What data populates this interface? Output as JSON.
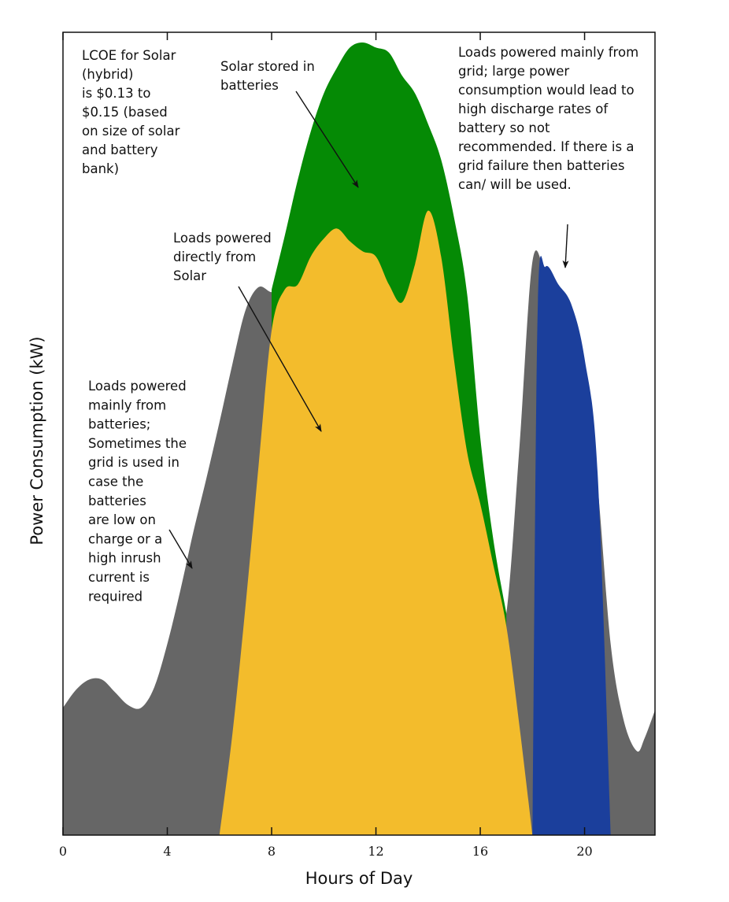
{
  "chart_data": {
    "type": "area",
    "xlabel": "Hours of Day",
    "ylabel": "Power Consumption (kW)",
    "xlim": [
      0,
      22.7
    ],
    "ylim": [
      0,
      31.5
    ],
    "x_ticks": [
      0,
      4,
      8,
      12,
      16,
      20
    ],
    "y_ticks_shown": false,
    "grid": false,
    "colors": {
      "load": "#666666",
      "solar_stored": "#058a05",
      "solar_direct": "#f3bc2c",
      "grid": "#1b3f9c"
    },
    "series": [
      {
        "key": "load",
        "x": [
          0,
          0.5,
          1,
          1.5,
          2,
          2.5,
          3,
          3.5,
          4,
          4.5,
          5,
          5.5,
          6,
          6.5,
          7,
          7.5,
          8,
          8.5,
          9,
          9.5,
          10,
          10.5,
          11,
          11.5,
          12,
          12.5,
          13,
          13.5,
          14,
          14.5,
          15,
          15.5,
          16,
          16.5,
          17,
          17.5,
          18,
          18.5,
          19,
          19.5,
          20,
          20.5,
          21,
          21.5,
          22,
          22.3,
          22.7
        ],
        "y": [
          5,
          5.7,
          6.1,
          6.1,
          5.6,
          5.1,
          5,
          5.8,
          7.5,
          9.6,
          11.9,
          14,
          16.2,
          18.5,
          20.6,
          21.5,
          21.3,
          21.4,
          22.3,
          23.3,
          24.5,
          24.8,
          24.1,
          23.5,
          22.7,
          22.9,
          23.4,
          24.6,
          24.5,
          22.8,
          18.7,
          10.4,
          8.7,
          7.6,
          8.7,
          15.2,
          22.5,
          22,
          20.9,
          20.3,
          18.2,
          13.7,
          7.5,
          4.5,
          3.3,
          3.8,
          4.9
        ]
      },
      {
        "key": "solar_stored",
        "x": [
          8,
          8.5,
          9,
          9.5,
          10,
          10.5,
          11,
          11.5,
          12,
          12.5,
          13,
          13.5,
          14,
          14.5,
          15,
          15.5,
          16,
          16.5,
          17
        ],
        "y": [
          21.4,
          23.5,
          25.7,
          27.6,
          29.1,
          30.1,
          30.9,
          31.1,
          30.9,
          30.7,
          29.8,
          29.1,
          27.9,
          26.5,
          24.2,
          21.2,
          15.6,
          11.6,
          8.7
        ]
      },
      {
        "key": "solar_direct",
        "x": [
          6,
          6.5,
          7,
          7.5,
          8,
          8.5,
          9,
          9.5,
          10,
          10.5,
          11,
          11.5,
          12,
          12.5,
          13,
          13.5,
          14,
          14.5,
          15,
          15.5,
          16,
          16.5,
          17,
          17.5,
          18
        ],
        "y": [
          0,
          4,
          9,
          14.5,
          19.8,
          21.4,
          21.6,
          22.7,
          23.4,
          23.8,
          23.3,
          22.9,
          22.7,
          21.6,
          20.9,
          22.4,
          24.5,
          22.7,
          18.6,
          15,
          13,
          10.6,
          8.2,
          4.3,
          0
        ]
      },
      {
        "key": "grid",
        "x": [
          18,
          18.2,
          18.5,
          19,
          19.5,
          20,
          20.5,
          21
        ],
        "y": [
          0,
          20.5,
          22.3,
          21.6,
          20.8,
          18.7,
          14.2,
          0
        ]
      }
    ]
  },
  "annotations": {
    "lcoe": [
      "LCOE for Solar",
      "(hybrid)",
      "is $0.13 to",
      "$0.15 (based",
      "on size of solar",
      "and battery",
      "bank)"
    ],
    "solar_stored": [
      "Solar stored in",
      "batteries"
    ],
    "grid_loads": [
      "Loads powered mainly from",
      "grid; large power",
      "consumption would lead to",
      "high discharge rates of",
      "battery so not",
      "recommended. If there is a",
      "grid failure then batteries",
      "can/ will be used."
    ],
    "direct_solar": [
      "Loads powered",
      "directly from",
      "Solar"
    ],
    "battery_loads": [
      "Loads powered",
      "mainly from",
      "batteries;",
      "Sometimes the",
      "grid is used in",
      "case the",
      "batteries",
      "are low on",
      "charge or a",
      "high inrush",
      "current is",
      "required"
    ]
  }
}
